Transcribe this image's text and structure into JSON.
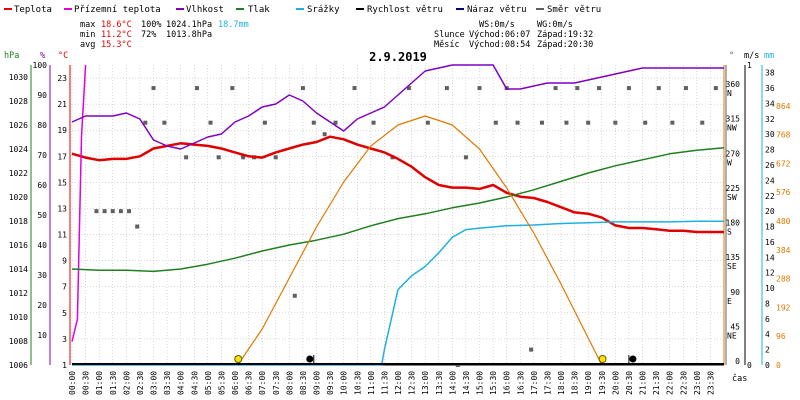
{
  "legend": [
    {
      "name": "Teplota",
      "color": "#e00000"
    },
    {
      "name": "Přízemní teplota",
      "color": "#e000e0"
    },
    {
      "name": "Vlhkost",
      "color": "#8000c0"
    },
    {
      "name": "Tlak",
      "color": "#208020"
    },
    {
      "name": "Srážky",
      "color": "#20b0e0"
    },
    {
      "name": "Rychlost větru",
      "color": "#000000"
    },
    {
      "name": "Náraz větru",
      "color": "#000080"
    },
    {
      "name": "Směr větru",
      "color": "#606060"
    }
  ],
  "stats": {
    "max": {
      "label": "max",
      "temp": "18.6°C",
      "hum": "100%",
      "press": "1024.1hPa",
      "rain": "18.7mm"
    },
    "min": {
      "label": "min",
      "temp": "11.2°C",
      "hum": "72%",
      "press": "1013.8hPa"
    },
    "avg": {
      "label": "avg",
      "temp": "15.3°C"
    }
  },
  "wind_info": {
    "ws": "WS:0m/s",
    "wg": "WG:0m/s"
  },
  "sun": {
    "label": "Slunce",
    "rise": "Východ:06:07",
    "set": "Západ:19:32"
  },
  "moon": {
    "label": "Měsíc",
    "rise": "Východ:08:54",
    "set": "Západ:20:30"
  },
  "title": "2.9.2019",
  "units": {
    "hpa": "hPa",
    "pct": "%",
    "degc": "°C",
    "deg": "°",
    "ms": "m/s",
    "mm": "mm",
    "time": "čas"
  },
  "colors": {
    "temp": "#e00000",
    "ground": "#e000e0",
    "hum": "#8000c0",
    "press": "#208020",
    "rain": "#20b0e0",
    "sun": "#e07800",
    "wind": "#000000",
    "gust": "#000080",
    "dir": "#606060",
    "grid": "#b0b0b0"
  },
  "chart_data": {
    "type": "line",
    "x_range_hours": [
      0,
      24
    ],
    "x_ticks": [
      "00:00",
      "00:30",
      "01:00",
      "01:30",
      "02:00",
      "02:30",
      "03:00",
      "03:30",
      "04:00",
      "04:30",
      "05:00",
      "05:30",
      "06:00",
      "06:30",
      "07:00",
      "07:30",
      "08:00",
      "08:30",
      "09:00",
      "09:30",
      "10:00",
      "10:30",
      "11:00",
      "11:30",
      "12:00",
      "12:30",
      "13:00",
      "13:30",
      "14:00",
      "14:30",
      "15:00",
      "15:30",
      "16:00",
      "16:30",
      "17:00",
      "17:30",
      "18:00",
      "18:30",
      "19:00",
      "19:30",
      "20:00",
      "20:30",
      "21:00",
      "21:30",
      "22:00",
      "22:30",
      "23:00",
      "23:30"
    ],
    "axes": {
      "hpa": {
        "min": 1006,
        "max": 1031,
        "ticks": [
          1006,
          1008,
          1010,
          1012,
          1014,
          1016,
          1018,
          1020,
          1022,
          1024,
          1026,
          1028,
          1030
        ]
      },
      "pct": {
        "min": 0,
        "max": 100,
        "ticks": [
          10,
          20,
          30,
          40,
          50,
          60,
          70,
          80,
          90,
          100
        ]
      },
      "degc": {
        "min": 1,
        "max": 24,
        "ticks": [
          1,
          3,
          5,
          7,
          9,
          11,
          13,
          15,
          17,
          19,
          21,
          23
        ]
      },
      "deg": {
        "min": 0,
        "max": 390,
        "ticks": [
          {
            "v": 360,
            "l": "N"
          },
          {
            "v": 315,
            "l": "NW"
          },
          {
            "v": 270,
            "l": "W"
          },
          {
            "v": 225,
            "l": "SW"
          },
          {
            "v": 180,
            "l": "S"
          },
          {
            "v": 135,
            "l": "SE"
          },
          {
            "v": 90,
            "l": "E"
          },
          {
            "v": 45,
            "l": "NE"
          },
          {
            "v": 0,
            "l": ""
          }
        ]
      },
      "ms": {
        "min": 0,
        "max": 1,
        "ticks": [
          0,
          1
        ]
      },
      "mm": {
        "min": 0,
        "max": 39,
        "ticks": [
          0,
          2,
          4,
          6,
          8,
          10,
          12,
          14,
          16,
          18,
          20,
          22,
          24,
          26,
          28,
          30,
          32,
          34,
          36,
          38
        ]
      },
      "sun": {
        "min": 0,
        "max": 1000,
        "ticks": [
          0,
          96,
          192,
          288,
          384,
          480,
          576,
          672,
          768,
          864
        ]
      }
    },
    "series": [
      {
        "name": "Teplota",
        "axis": "degc",
        "points": [
          [
            0,
            17.2
          ],
          [
            0.5,
            16.9
          ],
          [
            1,
            16.7
          ],
          [
            1.5,
            16.8
          ],
          [
            2,
            16.8
          ],
          [
            2.5,
            17.0
          ],
          [
            3,
            17.6
          ],
          [
            3.5,
            17.8
          ],
          [
            4,
            18.0
          ],
          [
            4.5,
            17.9
          ],
          [
            5,
            17.8
          ],
          [
            5.5,
            17.6
          ],
          [
            6,
            17.3
          ],
          [
            6.5,
            17.0
          ],
          [
            7,
            16.9
          ],
          [
            7.5,
            17.3
          ],
          [
            8,
            17.6
          ],
          [
            8.5,
            17.9
          ],
          [
            9,
            18.1
          ],
          [
            9.5,
            18.5
          ],
          [
            10,
            18.3
          ],
          [
            10.5,
            17.9
          ],
          [
            11,
            17.6
          ],
          [
            11.5,
            17.3
          ],
          [
            12,
            16.8
          ],
          [
            12.5,
            16.2
          ],
          [
            13,
            15.4
          ],
          [
            13.5,
            14.8
          ],
          [
            14,
            14.6
          ],
          [
            14.5,
            14.6
          ],
          [
            15,
            14.5
          ],
          [
            15.5,
            14.8
          ],
          [
            16,
            14.2
          ],
          [
            16.5,
            13.9
          ],
          [
            17,
            13.8
          ],
          [
            17.5,
            13.5
          ],
          [
            18,
            13.1
          ],
          [
            18.5,
            12.7
          ],
          [
            19,
            12.6
          ],
          [
            19.5,
            12.3
          ],
          [
            20,
            11.7
          ],
          [
            20.5,
            11.5
          ],
          [
            21,
            11.5
          ],
          [
            21.5,
            11.4
          ],
          [
            22,
            11.3
          ],
          [
            22.5,
            11.3
          ],
          [
            23,
            11.2
          ],
          [
            23.5,
            11.2
          ],
          [
            24,
            11.2
          ]
        ]
      },
      {
        "name": "Přízemní teplota",
        "axis": "degc",
        "points": [
          [
            0,
            2.8
          ],
          [
            0.2,
            4.5
          ],
          [
            0.35,
            18.5
          ],
          [
            0.5,
            24.0
          ]
        ]
      },
      {
        "name": "Vlhkost",
        "axis": "pct",
        "points": [
          [
            0,
            81
          ],
          [
            0.5,
            83
          ],
          [
            1,
            83
          ],
          [
            1.5,
            83
          ],
          [
            2,
            84
          ],
          [
            2.5,
            82
          ],
          [
            3,
            75
          ],
          [
            3.5,
            73
          ],
          [
            4,
            72
          ],
          [
            4.5,
            74
          ],
          [
            5,
            76
          ],
          [
            5.5,
            77
          ],
          [
            6,
            81
          ],
          [
            6.5,
            83
          ],
          [
            7,
            86
          ],
          [
            7.5,
            87
          ],
          [
            8,
            90
          ],
          [
            8.5,
            88
          ],
          [
            9,
            84
          ],
          [
            9.5,
            81
          ],
          [
            10,
            78
          ],
          [
            10.5,
            82
          ],
          [
            11,
            84
          ],
          [
            11.5,
            86
          ],
          [
            12,
            90
          ],
          [
            12.5,
            94
          ],
          [
            13,
            98
          ],
          [
            13.5,
            99
          ],
          [
            14,
            100
          ],
          [
            14.5,
            100
          ],
          [
            15,
            100
          ],
          [
            15.5,
            100
          ],
          [
            16,
            92
          ],
          [
            16.5,
            92
          ],
          [
            17,
            93
          ],
          [
            17.5,
            94
          ],
          [
            18,
            94
          ],
          [
            18.5,
            94
          ],
          [
            19,
            95
          ],
          [
            19.5,
            96
          ],
          [
            20,
            97
          ],
          [
            20.5,
            98
          ],
          [
            21,
            99
          ],
          [
            21.5,
            99
          ],
          [
            22,
            99
          ],
          [
            22.5,
            99
          ],
          [
            23,
            99
          ],
          [
            23.5,
            99
          ],
          [
            24,
            99
          ]
        ]
      },
      {
        "name": "Tlak",
        "axis": "hpa",
        "points": [
          [
            0,
            1014.0
          ],
          [
            1,
            1013.9
          ],
          [
            2,
            1013.9
          ],
          [
            3,
            1013.8
          ],
          [
            4,
            1014.0
          ],
          [
            5,
            1014.4
          ],
          [
            6,
            1014.9
          ],
          [
            7,
            1015.5
          ],
          [
            8,
            1016.0
          ],
          [
            9,
            1016.4
          ],
          [
            10,
            1016.9
          ],
          [
            11,
            1017.6
          ],
          [
            12,
            1018.2
          ],
          [
            13,
            1018.6
          ],
          [
            14,
            1019.1
          ],
          [
            15,
            1019.5
          ],
          [
            16,
            1020.0
          ],
          [
            17,
            1020.6
          ],
          [
            18,
            1021.3
          ],
          [
            19,
            1022.0
          ],
          [
            20,
            1022.6
          ],
          [
            21,
            1023.1
          ],
          [
            22,
            1023.6
          ],
          [
            23,
            1023.9
          ],
          [
            24,
            1024.1
          ]
        ]
      },
      {
        "name": "Srážky",
        "axis": "mm",
        "points": [
          [
            0,
            0
          ],
          [
            11.4,
            0
          ],
          [
            11.5,
            2.0
          ],
          [
            12,
            9.8
          ],
          [
            12.5,
            11.6
          ],
          [
            13,
            12.8
          ],
          [
            13.5,
            14.6
          ],
          [
            14,
            16.6
          ],
          [
            14.5,
            17.6
          ],
          [
            15,
            17.8
          ],
          [
            16,
            18.1
          ],
          [
            17,
            18.2
          ],
          [
            18,
            18.4
          ],
          [
            19,
            18.5
          ],
          [
            20,
            18.6
          ],
          [
            21,
            18.6
          ],
          [
            22,
            18.6
          ],
          [
            23,
            18.7
          ],
          [
            24,
            18.7
          ]
        ]
      },
      {
        "name": "Sluneční záření",
        "axis": "sun",
        "points": [
          [
            6.1,
            0
          ],
          [
            7,
            120
          ],
          [
            8,
            290
          ],
          [
            9,
            460
          ],
          [
            10,
            610
          ],
          [
            11,
            730
          ],
          [
            12,
            800
          ],
          [
            13,
            830
          ],
          [
            14,
            800
          ],
          [
            15,
            720
          ],
          [
            16,
            590
          ],
          [
            17,
            440
          ],
          [
            18,
            270
          ],
          [
            19,
            90
          ],
          [
            19.5,
            0
          ]
        ]
      }
    ],
    "wind_direction": [
      {
        "t": 0.9,
        "d": 200
      },
      {
        "t": 1.2,
        "d": 200
      },
      {
        "t": 1.5,
        "d": 200
      },
      {
        "t": 1.8,
        "d": 200
      },
      {
        "t": 2.1,
        "d": 200
      },
      {
        "t": 2.4,
        "d": 180
      },
      {
        "t": 2.7,
        "d": 315
      },
      {
        "t": 3.0,
        "d": 360
      },
      {
        "t": 3.4,
        "d": 315
      },
      {
        "t": 4.2,
        "d": 270
      },
      {
        "t": 4.6,
        "d": 360
      },
      {
        "t": 5.1,
        "d": 315
      },
      {
        "t": 5.4,
        "d": 270
      },
      {
        "t": 5.9,
        "d": 360
      },
      {
        "t": 6.3,
        "d": 270
      },
      {
        "t": 6.7,
        "d": 270
      },
      {
        "t": 7.1,
        "d": 315
      },
      {
        "t": 7.5,
        "d": 270
      },
      {
        "t": 8.2,
        "d": 90
      },
      {
        "t": 8.5,
        "d": 360
      },
      {
        "t": 8.9,
        "d": 315
      },
      {
        "t": 9.3,
        "d": 300
      },
      {
        "t": 9.7,
        "d": 315
      },
      {
        "t": 10.4,
        "d": 360
      },
      {
        "t": 11.1,
        "d": 315
      },
      {
        "t": 11.8,
        "d": 270
      },
      {
        "t": 12.4,
        "d": 360
      },
      {
        "t": 13.1,
        "d": 315
      },
      {
        "t": 13.8,
        "d": 360
      },
      {
        "t": 14.2,
        "d": 0
      },
      {
        "t": 14.5,
        "d": 270
      },
      {
        "t": 15.0,
        "d": 360
      },
      {
        "t": 15.6,
        "d": 315
      },
      {
        "t": 16.0,
        "d": 360
      },
      {
        "t": 16.4,
        "d": 315
      },
      {
        "t": 16.9,
        "d": 20
      },
      {
        "t": 17.3,
        "d": 315
      },
      {
        "t": 17.8,
        "d": 360
      },
      {
        "t": 18.2,
        "d": 315
      },
      {
        "t": 18.6,
        "d": 360
      },
      {
        "t": 19.0,
        "d": 315
      },
      {
        "t": 19.4,
        "d": 360
      },
      {
        "t": 20.0,
        "d": 315
      },
      {
        "t": 20.5,
        "d": 360
      },
      {
        "t": 21.1,
        "d": 315
      },
      {
        "t": 21.6,
        "d": 360
      },
      {
        "t": 22.1,
        "d": 315
      },
      {
        "t": 22.6,
        "d": 360
      },
      {
        "t": 23.2,
        "d": 315
      },
      {
        "t": 23.7,
        "d": 360
      }
    ],
    "markers": {
      "sunrise": 6.12,
      "sunset": 19.53,
      "moonrise": 8.9,
      "moonset": 20.5
    }
  }
}
